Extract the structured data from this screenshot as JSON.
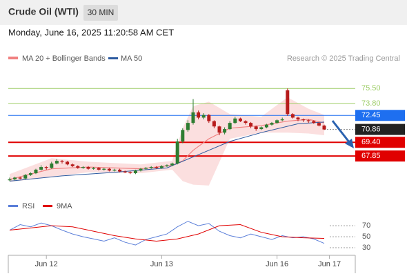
{
  "header": {
    "instrument": "Crude Oil (WTI)",
    "interval": "30 MIN",
    "datetime": "Monday, June 16, 2025 11:20:58 AM CET"
  },
  "chart_data": [
    {
      "type": "candlestick",
      "credit": "Research © 2025 Trading Central",
      "up_color": "#2e7d32",
      "down_color": "#b71c1c",
      "ylim": [
        63.4,
        78.1
      ],
      "xticks": [
        {
          "value": 7,
          "label": "Jun 12"
        },
        {
          "value": 29,
          "label": "Jun 13"
        },
        {
          "value": 51,
          "label": "Jun 16"
        },
        {
          "value": 61,
          "label": "Jun 17"
        }
      ],
      "candles": [
        [
          65.1,
          65.4,
          65.0,
          65.2
        ],
        [
          65.2,
          65.5,
          65.1,
          65.4
        ],
        [
          65.4,
          65.5,
          65.2,
          65.3
        ],
        [
          65.3,
          65.8,
          65.2,
          65.7
        ],
        [
          65.7,
          66.0,
          65.6,
          65.9
        ],
        [
          65.9,
          66.4,
          65.8,
          66.3
        ],
        [
          66.3,
          66.8,
          66.2,
          66.6
        ],
        [
          66.6,
          66.7,
          66.3,
          66.5
        ],
        [
          66.5,
          67.2,
          66.4,
          67.0
        ],
        [
          67.0,
          67.5,
          66.9,
          67.3
        ],
        [
          67.3,
          67.4,
          67.0,
          67.2
        ],
        [
          67.2,
          67.3,
          66.8,
          66.9
        ],
        [
          66.9,
          67.0,
          66.6,
          66.7
        ],
        [
          66.7,
          66.8,
          66.4,
          66.5
        ],
        [
          66.5,
          66.7,
          66.4,
          66.6
        ],
        [
          66.6,
          66.7,
          66.3,
          66.4
        ],
        [
          66.4,
          66.6,
          66.3,
          66.5
        ],
        [
          66.5,
          66.6,
          66.2,
          66.3
        ],
        [
          66.3,
          66.5,
          66.2,
          66.4
        ],
        [
          66.4,
          66.5,
          66.1,
          66.2
        ],
        [
          66.2,
          66.4,
          66.1,
          66.3
        ],
        [
          66.3,
          66.4,
          66.0,
          66.1
        ],
        [
          66.1,
          66.2,
          65.9,
          66.0
        ],
        [
          66.0,
          66.1,
          65.8,
          65.9
        ],
        [
          65.9,
          66.3,
          65.8,
          66.2
        ],
        [
          66.2,
          66.5,
          66.1,
          66.4
        ],
        [
          66.4,
          66.6,
          66.3,
          66.5
        ],
        [
          66.5,
          66.7,
          66.4,
          66.6
        ],
        [
          66.6,
          66.7,
          66.4,
          66.5
        ],
        [
          66.5,
          66.8,
          66.4,
          66.7
        ],
        [
          66.7,
          66.9,
          66.6,
          66.8
        ],
        [
          66.8,
          67.1,
          66.7,
          67.0
        ],
        [
          67.0,
          69.8,
          66.9,
          69.5
        ],
        [
          69.5,
          71.0,
          69.3,
          70.8
        ],
        [
          70.8,
          71.9,
          70.6,
          71.6
        ],
        [
          71.6,
          74.3,
          71.4,
          72.8
        ],
        [
          72.8,
          73.0,
          72.0,
          72.2
        ],
        [
          72.2,
          72.7,
          72.0,
          72.5
        ],
        [
          72.5,
          72.6,
          71.6,
          71.8
        ],
        [
          71.8,
          71.9,
          71.0,
          71.2
        ],
        [
          71.2,
          71.3,
          70.2,
          70.5
        ],
        [
          70.5,
          71.1,
          70.3,
          70.9
        ],
        [
          70.9,
          71.8,
          70.8,
          71.6
        ],
        [
          71.6,
          72.3,
          71.5,
          72.1
        ],
        [
          72.1,
          72.2,
          71.7,
          71.8
        ],
        [
          71.8,
          71.9,
          71.4,
          71.6
        ],
        [
          71.6,
          71.7,
          71.0,
          71.2
        ],
        [
          71.2,
          71.3,
          70.7,
          70.9
        ],
        [
          70.9,
          71.2,
          70.8,
          71.1
        ],
        [
          71.1,
          71.5,
          71.0,
          71.4
        ],
        [
          71.4,
          71.7,
          71.3,
          71.6
        ],
        [
          71.6,
          72.0,
          71.5,
          71.9
        ],
        [
          71.9,
          72.2,
          71.8,
          72.0
        ],
        [
          75.3,
          75.5,
          72.4,
          72.6
        ],
        [
          72.6,
          72.7,
          72.1,
          72.2
        ],
        [
          72.2,
          72.3,
          71.8,
          72.0
        ],
        [
          72.0,
          72.1,
          71.7,
          71.9
        ],
        [
          71.9,
          72.0,
          71.6,
          71.8
        ],
        [
          71.8,
          71.9,
          71.5,
          71.6
        ],
        [
          71.6,
          71.7,
          71.2,
          71.3
        ],
        [
          71.3,
          71.4,
          70.8,
          70.86
        ]
      ],
      "series": [
        {
          "name": "MA 20 + Bollinger Bands",
          "color": "#f08080",
          "x": [
            0,
            8,
            15,
            25,
            31,
            33,
            35,
            38,
            42,
            48,
            53,
            57,
            60
          ],
          "values": [
            65.2,
            66.4,
            66.6,
            66.4,
            66.8,
            67.3,
            68.5,
            69.8,
            71.0,
            71.3,
            71.8,
            72.0,
            71.6
          ],
          "upper": [
            65.8,
            67.6,
            67.2,
            66.9,
            67.3,
            71.0,
            73.5,
            74.0,
            72.6,
            72.3,
            74.5,
            73.2,
            72.5
          ],
          "lower": [
            64.9,
            65.5,
            66.0,
            65.9,
            66.3,
            65.0,
            64.6,
            64.5,
            69.8,
            70.5,
            70.5,
            70.4,
            70.2
          ]
        },
        {
          "name": "MA 50",
          "color": "#2c5aa0",
          "x": [
            0,
            10,
            20,
            30,
            36,
            42,
            48,
            55,
            60
          ],
          "values": [
            65.0,
            65.6,
            66.0,
            66.5,
            68.0,
            69.5,
            70.5,
            71.5,
            71.7
          ]
        }
      ],
      "levels": [
        {
          "value": 75.5,
          "label": "75.50",
          "color": "#9ccc65",
          "style": "text"
        },
        {
          "value": 73.8,
          "label": "73.80",
          "color": "#9ccc65",
          "style": "text"
        },
        {
          "value": 72.45,
          "label": "72.45",
          "color": "#1e6ff0",
          "style": "box"
        },
        {
          "value": 69.4,
          "label": "69.40",
          "color": "#e00000",
          "style": "box"
        },
        {
          "value": 67.85,
          "label": "67.85",
          "color": "#e00000",
          "style": "box"
        }
      ],
      "current": {
        "value": 70.86,
        "label": "70.86",
        "color": "#222222"
      }
    },
    {
      "type": "line",
      "ylim": [
        10,
        104
      ],
      "yticks": [
        70,
        50,
        30
      ],
      "series": [
        {
          "name": "RSI",
          "color": "#5b7fd9",
          "x": [
            0,
            2,
            4,
            6,
            8,
            10,
            12,
            14,
            16,
            18,
            20,
            22,
            24,
            26,
            28,
            30,
            32,
            34,
            36,
            38,
            40,
            42,
            44,
            46,
            48,
            50,
            52,
            54,
            56,
            58,
            60
          ],
          "values": [
            62,
            72,
            68,
            75,
            70,
            62,
            55,
            50,
            46,
            42,
            48,
            40,
            35,
            45,
            50,
            55,
            68,
            78,
            70,
            74,
            60,
            52,
            48,
            55,
            50,
            45,
            52,
            48,
            50,
            46,
            38
          ]
        },
        {
          "name": "9MA",
          "color": "#e00000",
          "x": [
            0,
            4,
            8,
            12,
            16,
            20,
            24,
            28,
            32,
            36,
            40,
            44,
            48,
            52,
            56,
            60
          ],
          "values": [
            62,
            66,
            70,
            68,
            60,
            52,
            46,
            42,
            46,
            55,
            70,
            72,
            58,
            50,
            48,
            47
          ]
        }
      ]
    }
  ]
}
